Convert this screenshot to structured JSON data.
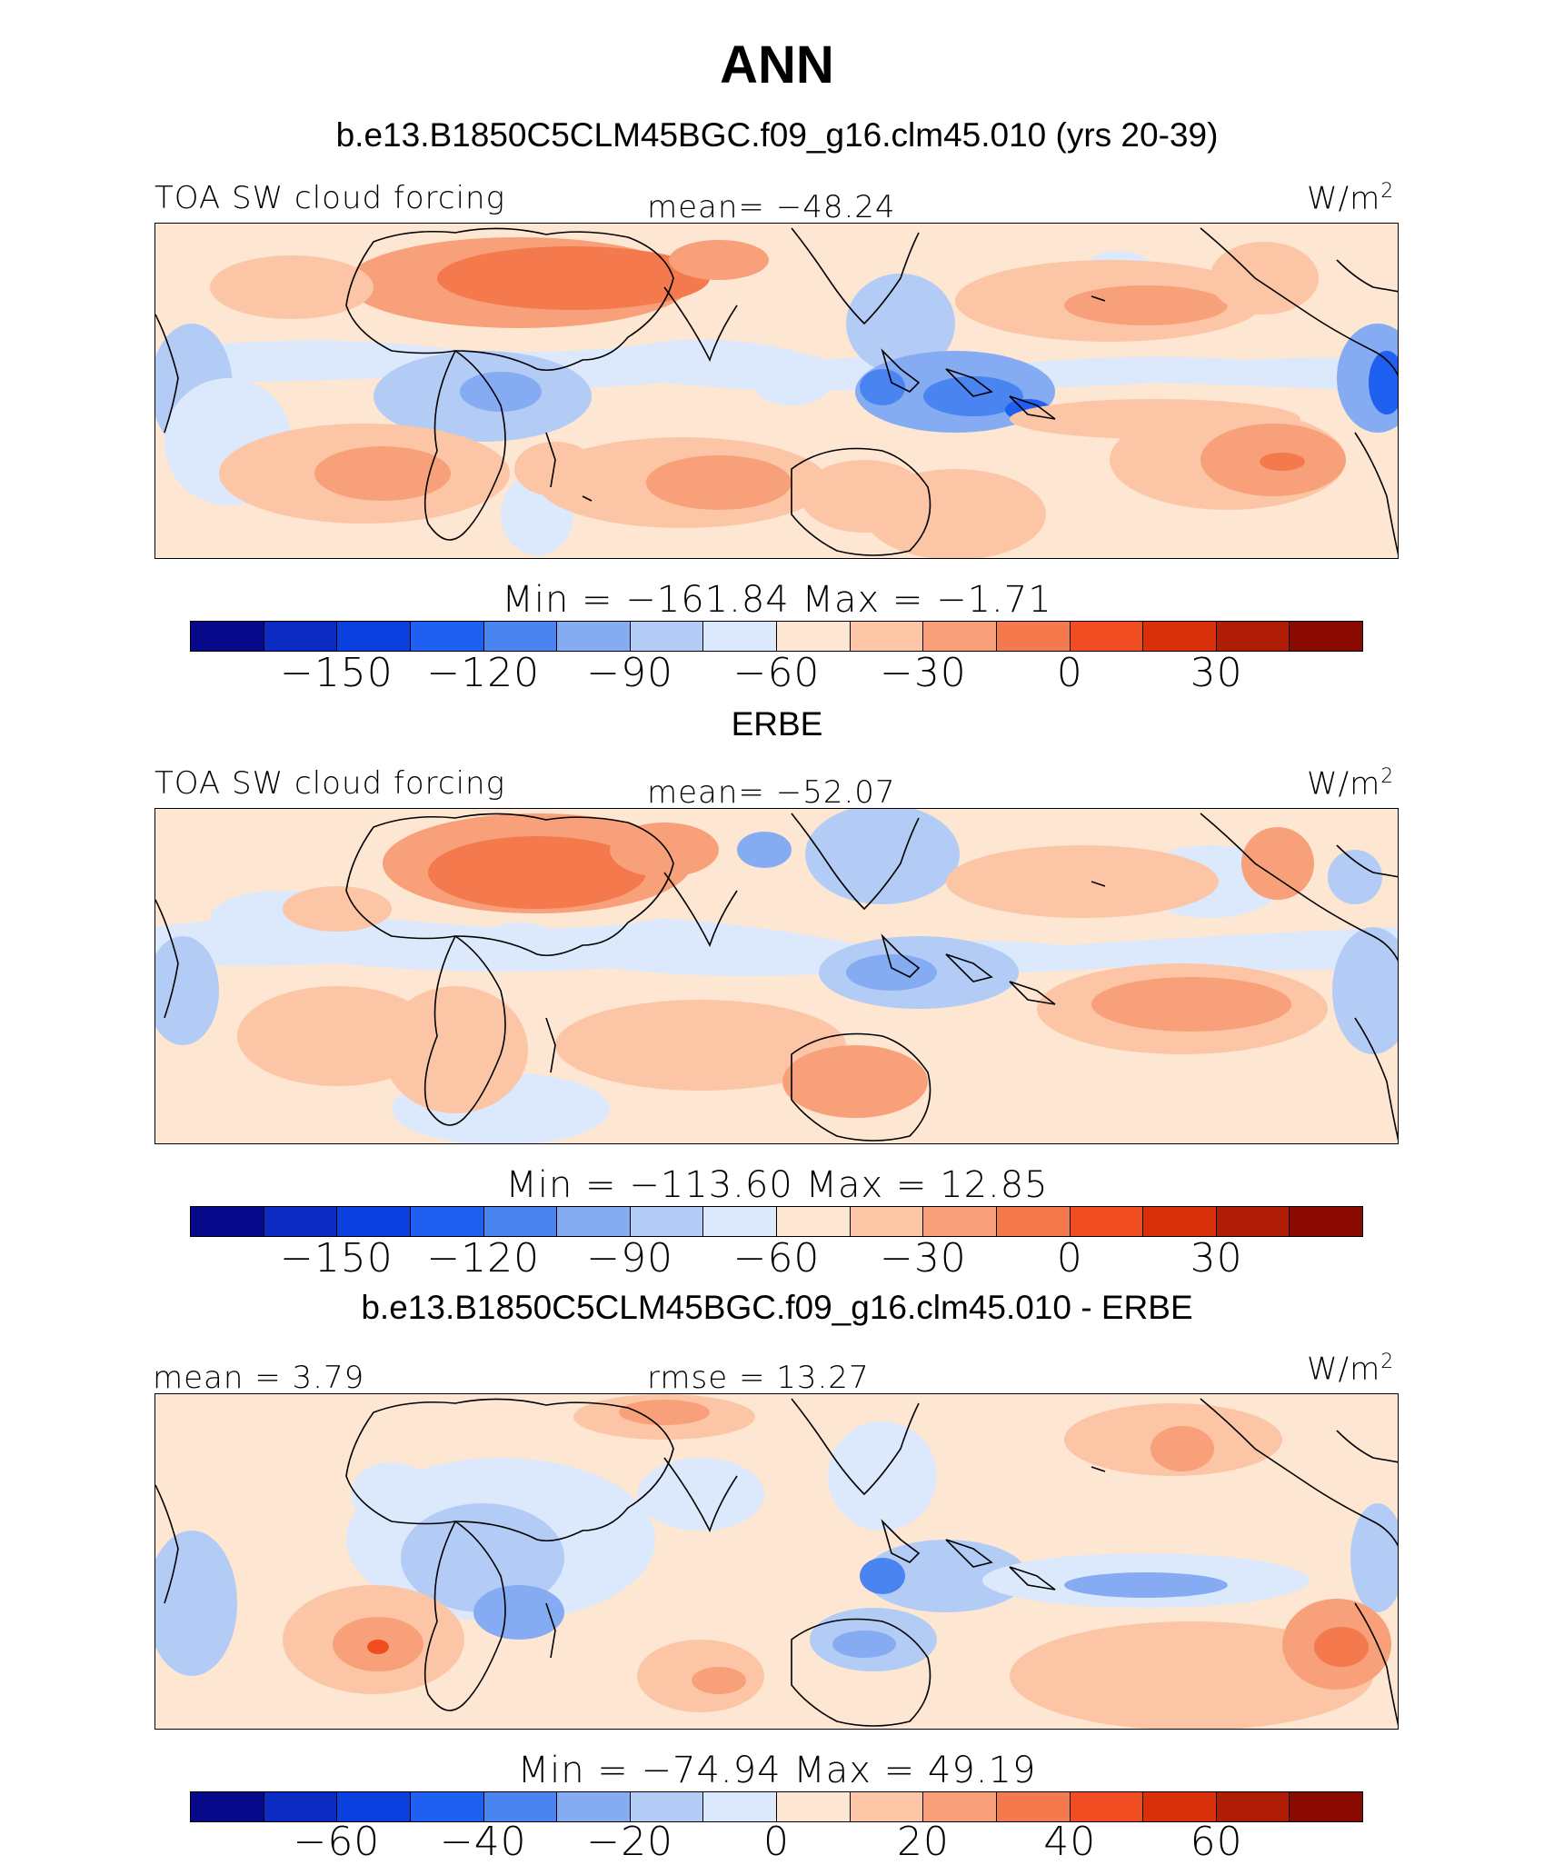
{
  "title": "ANN",
  "panel1": {
    "heading": "b.e13.B1850C5CLM45BGC.f09_g16.clm45.010 (yrs 20-39)",
    "variable": "TOA SW cloud forcing",
    "mean_text": "mean= −48.24",
    "unit": "W/m",
    "unit_sup": "2",
    "min_max_text": "Min  =  −161.84  Max  =    −1.71",
    "colorbar_ticks": [
      "−150",
      "−120",
      "−90",
      "−60",
      "−30",
      "0",
      "30"
    ],
    "colorbar_tick_slots": [
      2,
      4,
      6,
      8,
      10,
      12,
      14
    ]
  },
  "panel2": {
    "heading": "ERBE",
    "variable": "TOA SW cloud forcing",
    "mean_text": "mean= −52.07",
    "unit": "W/m",
    "unit_sup": "2",
    "min_max_text": "Min  =  −113.60  Max  =    12.85",
    "colorbar_ticks": [
      "−150",
      "−120",
      "−90",
      "−60",
      "−30",
      "0",
      "30"
    ],
    "colorbar_tick_slots": [
      2,
      4,
      6,
      8,
      10,
      12,
      14
    ]
  },
  "panel3": {
    "heading": "b.e13.B1850C5CLM45BGC.f09_g16.clm45.010 - ERBE",
    "mean_text": "mean  =    3.79",
    "rmse_text": "rmse  =   13.27",
    "unit": "W/m",
    "unit_sup": "2",
    "min_max_text": "Min  =  −74.94  Max  =   49.19",
    "colorbar_ticks": [
      "−60",
      "−40",
      "−20",
      "0",
      "20",
      "40",
      "60"
    ],
    "colorbar_tick_slots": [
      2,
      4,
      6,
      8,
      10,
      12,
      14
    ]
  },
  "colors": {
    "scale": [
      "#08088a",
      "#0b2bc2",
      "#0a40e0",
      "#2060f0",
      "#4a84f0",
      "#85acf2",
      "#b3ccf6",
      "#dce8fb",
      "#fde6d2",
      "#fcc6a6",
      "#f8a07a",
      "#f47a4e",
      "#f04e22",
      "#d8300a",
      "#b01d06",
      "#8a0a02"
    ]
  }
}
